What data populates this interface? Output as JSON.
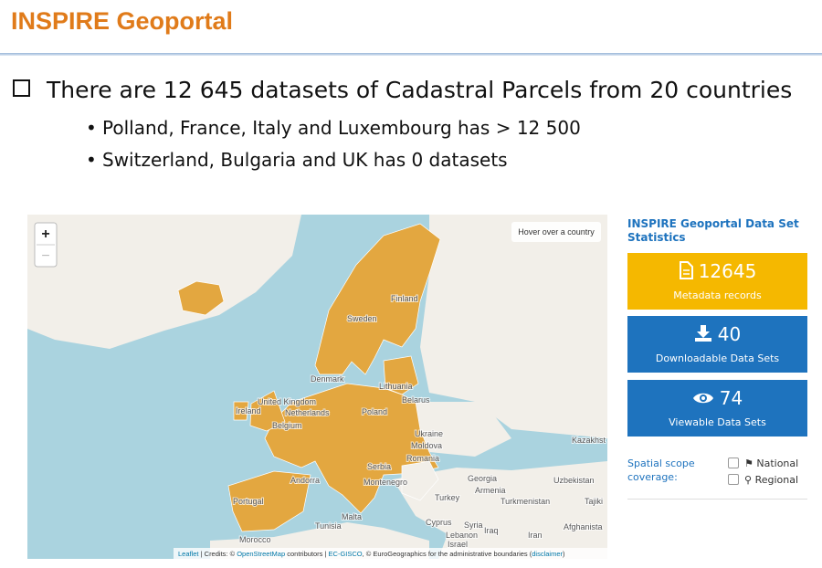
{
  "header": {
    "title": "INSPIRE Geoportal"
  },
  "content": {
    "main_point": "There are 12 645 datasets of Cadastral Parcels from 20 countries",
    "sub_points": [
      "Polland, France, Italy and Luxembourg has > 12 500",
      "Switzerland, Bulgaria and UK has 0 datasets"
    ]
  },
  "map": {
    "zoom_in": "+",
    "zoom_out": "−",
    "info": "Hover over a country",
    "labels": [
      "Sweden",
      "Finland",
      "Denmark",
      "Lithuania",
      "Belarus",
      "United Kingdom",
      "Ireland",
      "Netherlands",
      "Belgium",
      "Poland",
      "Ukraine",
      "Moldova",
      "Romania",
      "Serbia",
      "Montenegro",
      "Andorra",
      "Portugal",
      "Malta",
      "Tunisia",
      "Morocco",
      "Turkey",
      "Georgia",
      "Armenia",
      "Turkmenistan",
      "Uzbekistan",
      "Tajiki",
      "Kazakhst",
      "Syria",
      "Lebanon",
      "Iraq",
      "Israel",
      "Iran",
      "Afghanista",
      "Cyprus"
    ],
    "attribution": {
      "leaflet": "Leaflet",
      "credits": " | Credits: © ",
      "osm": "OpenStreetMap",
      "contributors": " contributors | ",
      "gisco": "EC-GISCO",
      "boundaries": ", © EuroGeographics for the administrative boundaries (",
      "disclaimer": "disclaimer",
      "end": ")"
    }
  },
  "statistics": {
    "title": "INSPIRE Geoportal Data Set Statistics",
    "cards": [
      {
        "value": 12645,
        "label": "Metadata records"
      },
      {
        "value": 40,
        "label": "Downloadable Data Sets"
      },
      {
        "value": 74,
        "label": "Viewable Data Sets"
      }
    ],
    "coverage_label": "Spatial scope coverage:",
    "options": [
      "National",
      "Regional"
    ]
  }
}
